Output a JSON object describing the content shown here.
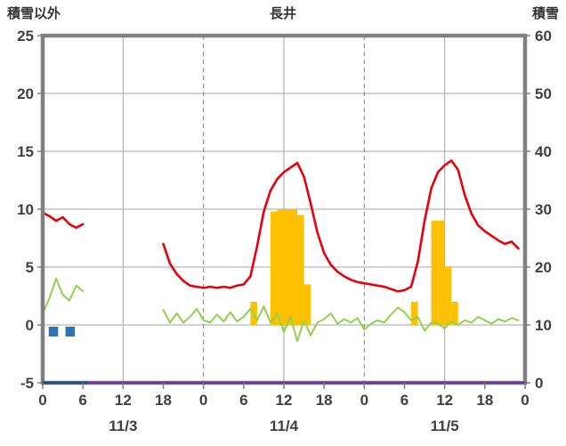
{
  "chart_data": {
    "type": "line",
    "title": "長井",
    "left_axis": {
      "label": "積雪以外",
      "min": -5,
      "max": 25,
      "ticks": [
        25,
        20,
        15,
        10,
        5,
        0,
        -5
      ]
    },
    "right_axis": {
      "label": "積雪",
      "min": 0,
      "max": 60,
      "ticks": [
        60,
        50,
        40,
        30,
        20,
        10,
        0
      ]
    },
    "x_axis": {
      "max_hour": 72,
      "tick_step": 6,
      "tick_labels": [
        "0",
        "6",
        "12",
        "18",
        "0",
        "6",
        "12",
        "18",
        "0",
        "6",
        "12",
        "18",
        "0"
      ],
      "solid_gridline_hours": [
        12,
        36,
        60
      ],
      "dashed_gridline_hours": [
        24,
        48
      ],
      "day_labels": [
        {
          "label": "11/3",
          "hour": 12
        },
        {
          "label": "11/4",
          "hour": 36
        },
        {
          "label": "11/5",
          "hour": 60
        }
      ]
    },
    "grid_color": "#a6a6a6",
    "frame_color": "#808080",
    "text_color": "#404040",
    "series": [
      {
        "name": "sunshine-bars",
        "kind": "bar",
        "axis": "left",
        "color": "#ffc000",
        "layer": "under",
        "bars": [
          [
            31,
            2
          ],
          [
            34,
            9.8
          ],
          [
            35,
            10
          ],
          [
            36,
            10
          ],
          [
            37,
            10
          ],
          [
            38,
            9.5
          ],
          [
            39,
            3.5
          ],
          [
            55,
            2
          ],
          [
            58,
            9
          ],
          [
            59,
            9
          ],
          [
            60,
            5
          ],
          [
            61,
            2
          ]
        ]
      },
      {
        "name": "precipitation-markers",
        "kind": "block",
        "axis": "left",
        "color": "#2e75b6",
        "layer": "under",
        "top": -0.15,
        "bottom": -1.0,
        "hour_ranges": [
          [
            0.9,
            2.3
          ],
          [
            3.4,
            4.8
          ]
        ]
      },
      {
        "name": "green-line",
        "kind": "line",
        "axis": "left",
        "color": "#92d050",
        "width": 2,
        "layer": "under",
        "segments": [
          [
            [
              0,
              1.0
            ],
            [
              1,
              2.3
            ],
            [
              2,
              4.0
            ],
            [
              3,
              2.6
            ],
            [
              4,
              2.1
            ],
            [
              5,
              3.4
            ],
            [
              6,
              2.9
            ]
          ],
          [
            [
              18,
              1.3
            ],
            [
              19,
              0.2
            ],
            [
              20,
              1.0
            ],
            [
              21,
              0.2
            ],
            [
              22,
              0.7
            ],
            [
              23,
              1.4
            ],
            [
              24,
              0.4
            ],
            [
              25,
              0.2
            ],
            [
              26,
              0.9
            ],
            [
              27,
              0.3
            ],
            [
              28,
              1.1
            ],
            [
              29,
              0.3
            ],
            [
              30,
              0.7
            ],
            [
              31,
              1.4
            ],
            [
              32,
              0.4
            ],
            [
              33,
              1.6
            ],
            [
              34,
              0.2
            ],
            [
              35,
              1.0
            ],
            [
              36,
              -0.6
            ],
            [
              37,
              0.7
            ],
            [
              38,
              -1.4
            ],
            [
              39,
              0.4
            ],
            [
              40,
              -0.9
            ],
            [
              41,
              0.2
            ],
            [
              42,
              0.5
            ],
            [
              43,
              1.0
            ],
            [
              44,
              0.1
            ],
            [
              45,
              0.5
            ],
            [
              46,
              0.2
            ],
            [
              47,
              0.6
            ],
            [
              48,
              -0.4
            ],
            [
              49,
              0.1
            ],
            [
              50,
              0.4
            ],
            [
              51,
              0.2
            ],
            [
              52,
              0.9
            ],
            [
              53,
              1.5
            ],
            [
              54,
              1.1
            ],
            [
              55,
              0.4
            ],
            [
              56,
              0.7
            ],
            [
              57,
              -0.5
            ],
            [
              58,
              0.2
            ],
            [
              59,
              0.1
            ],
            [
              60,
              -0.3
            ],
            [
              61,
              0.3
            ],
            [
              62,
              0.0
            ],
            [
              63,
              0.4
            ],
            [
              64,
              0.2
            ],
            [
              65,
              0.7
            ],
            [
              66,
              0.4
            ],
            [
              67,
              0.1
            ],
            [
              68,
              0.5
            ],
            [
              69,
              0.3
            ],
            [
              70,
              0.6
            ],
            [
              71,
              0.4
            ]
          ]
        ]
      },
      {
        "name": "red-line-temperature",
        "kind": "line",
        "axis": "left",
        "color": "#e8000d",
        "width": 2.6,
        "layer": "under",
        "segments": [
          [
            [
              0,
              9.7
            ],
            [
              1,
              9.4
            ],
            [
              2,
              9.0
            ],
            [
              3,
              9.3
            ],
            [
              4,
              8.7
            ],
            [
              5,
              8.4
            ],
            [
              6,
              8.7
            ]
          ],
          [
            [
              18,
              7.0
            ],
            [
              19,
              5.3
            ],
            [
              20,
              4.4
            ],
            [
              21,
              3.8
            ],
            [
              22,
              3.4
            ],
            [
              23,
              3.3
            ],
            [
              24,
              3.2
            ],
            [
              25,
              3.3
            ],
            [
              26,
              3.2
            ],
            [
              27,
              3.3
            ],
            [
              28,
              3.2
            ],
            [
              29,
              3.4
            ],
            [
              30,
              3.5
            ],
            [
              31,
              4.2
            ],
            [
              32,
              6.8
            ],
            [
              33,
              9.8
            ],
            [
              34,
              11.6
            ],
            [
              35,
              12.6
            ],
            [
              36,
              13.2
            ],
            [
              37,
              13.6
            ],
            [
              38,
              14.0
            ],
            [
              39,
              12.8
            ],
            [
              40,
              10.5
            ],
            [
              41,
              8.0
            ],
            [
              42,
              6.2
            ],
            [
              43,
              5.2
            ],
            [
              44,
              4.6
            ],
            [
              45,
              4.2
            ],
            [
              46,
              3.9
            ],
            [
              47,
              3.7
            ],
            [
              48,
              3.6
            ],
            [
              49,
              3.5
            ],
            [
              50,
              3.4
            ],
            [
              51,
              3.3
            ],
            [
              52,
              3.1
            ],
            [
              53,
              2.9
            ],
            [
              54,
              3.0
            ],
            [
              55,
              3.3
            ],
            [
              56,
              5.5
            ],
            [
              57,
              9.0
            ],
            [
              58,
              11.8
            ],
            [
              59,
              13.2
            ],
            [
              60,
              13.8
            ],
            [
              61,
              14.2
            ],
            [
              62,
              13.4
            ],
            [
              63,
              11.2
            ],
            [
              64,
              9.6
            ],
            [
              65,
              8.6
            ],
            [
              66,
              8.1
            ],
            [
              67,
              7.7
            ],
            [
              68,
              7.3
            ],
            [
              69,
              7.0
            ],
            [
              70,
              7.2
            ],
            [
              71,
              6.6
            ]
          ]
        ]
      },
      {
        "name": "purple-line-snow-depth",
        "kind": "line",
        "axis": "right",
        "color": "#7030a0",
        "width": 2.5,
        "layer": "over",
        "segments": [
          [
            [
              0,
              0
            ],
            [
              72,
              0
            ]
          ]
        ]
      },
      {
        "name": "navy-baseline-segment",
        "kind": "line",
        "axis": "left",
        "color": "#1f4e79",
        "width": 3,
        "layer": "over",
        "segments": [
          [
            [
              0,
              -5
            ],
            [
              6.5,
              -5
            ]
          ]
        ]
      }
    ]
  }
}
